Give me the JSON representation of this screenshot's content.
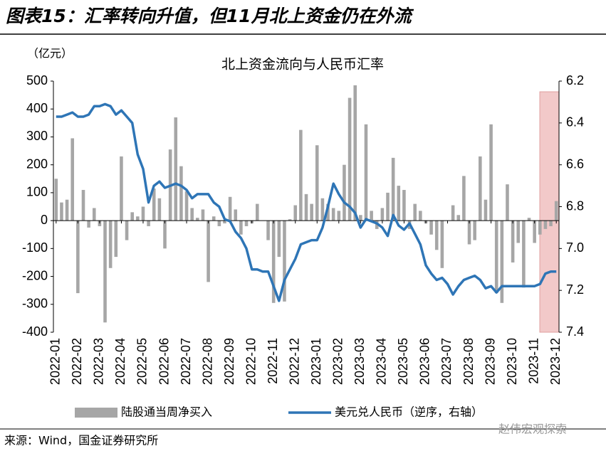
{
  "chart_data": {
    "type": "bar_line",
    "title": "图表15：汇率转向升值，但11月北上资金仍在外流",
    "subtitle": "北上资金流向与人民币汇率",
    "y_label": "（亿元）",
    "source": "来源：Wind，国金证券研究所",
    "watermark": "赵伟宏观探索",
    "categories": [
      "2022-01",
      null,
      null,
      null,
      "2022-02",
      null,
      null,
      null,
      "2022-03",
      null,
      null,
      null,
      "2022-04",
      null,
      null,
      null,
      "2022-05",
      null,
      null,
      null,
      "2022-06",
      null,
      null,
      null,
      "2022-07",
      null,
      null,
      null,
      "2022-08",
      null,
      null,
      null,
      "2022-09",
      null,
      null,
      null,
      "2022-10",
      null,
      null,
      null,
      "2022-11",
      null,
      null,
      null,
      "2022-12",
      null,
      null,
      null,
      "2023-01",
      null,
      null,
      null,
      "2023-02",
      null,
      null,
      null,
      "2023-03",
      null,
      null,
      null,
      "2023-04",
      null,
      null,
      null,
      "2023-05",
      null,
      null,
      null,
      "2023-06",
      null,
      null,
      null,
      "2023-07",
      null,
      null,
      null,
      "2023-08",
      null,
      null,
      null,
      "2023-09",
      null,
      null,
      null,
      "2023-10",
      null,
      null,
      null,
      "2023-11",
      null,
      null,
      null,
      "2023-12"
    ],
    "series": [
      {
        "name": "陆股通当周净买入",
        "type": "bar",
        "color": "#a6a6a6",
        "values": [
          150,
          65,
          75,
          295,
          -260,
          110,
          -25,
          45,
          -20,
          -365,
          -170,
          -130,
          230,
          -70,
          30,
          15,
          50,
          -20,
          115,
          80,
          -100,
          255,
          370,
          195,
          105,
          45,
          10,
          40,
          -220,
          15,
          -20,
          -10,
          85,
          40,
          -50,
          -20,
          -10,
          60,
          0,
          -70,
          -295,
          -130,
          -290,
          5,
          55,
          325,
          95,
          60,
          270,
          80,
          60,
          45,
          35,
          200,
          440,
          485,
          20,
          345,
          35,
          -30,
          45,
          100,
          225,
          125,
          110,
          -30,
          60,
          35,
          -10,
          -50,
          -105,
          -170,
          0,
          55,
          20,
          160,
          -85,
          -70,
          230,
          75,
          345,
          -260,
          -295,
          130,
          -150,
          -80,
          -240,
          10,
          -80,
          -50,
          -30,
          -20,
          70
        ]
      },
      {
        "name": "美元兑人民币（逆序，右轴）",
        "type": "line",
        "axis": "y2",
        "color": "#2e75b6",
        "values": [
          6.37,
          6.37,
          6.36,
          6.35,
          6.37,
          6.37,
          6.36,
          6.32,
          6.32,
          6.31,
          6.32,
          6.36,
          6.34,
          6.37,
          6.4,
          6.55,
          6.62,
          6.78,
          6.7,
          6.68,
          6.71,
          6.7,
          6.69,
          6.7,
          6.72,
          6.76,
          6.74,
          6.74,
          6.74,
          6.78,
          6.8,
          6.86,
          6.87,
          6.92,
          6.95,
          7.0,
          7.1,
          7.1,
          7.11,
          7.11,
          7.18,
          7.25,
          7.15,
          7.1,
          7.05,
          6.98,
          6.97,
          6.96,
          6.96,
          6.9,
          6.8,
          6.69,
          6.74,
          6.78,
          6.8,
          6.83,
          6.9,
          6.86,
          6.87,
          6.88,
          6.9,
          6.94,
          6.84,
          6.89,
          6.91,
          6.88,
          6.93,
          6.98,
          7.08,
          7.12,
          7.15,
          7.14,
          7.17,
          7.22,
          7.18,
          7.15,
          7.14,
          7.13,
          7.15,
          7.19,
          7.18,
          7.21,
          7.18,
          7.18,
          7.18,
          7.18,
          7.18,
          7.18,
          7.18,
          7.17,
          7.12,
          7.11,
          7.11
        ]
      }
    ],
    "ylim": [
      -400,
      500
    ],
    "yticks": [
      -400,
      -300,
      -200,
      -100,
      0,
      100,
      200,
      300,
      400,
      500
    ],
    "y2lim": [
      6.2,
      7.4
    ],
    "y2ticks": [
      6.2,
      6.4,
      6.6,
      6.8,
      {
        "value": 7,
        "label": "7.0"
      },
      7.2,
      7.4
    ],
    "y2_inverted": true
  }
}
